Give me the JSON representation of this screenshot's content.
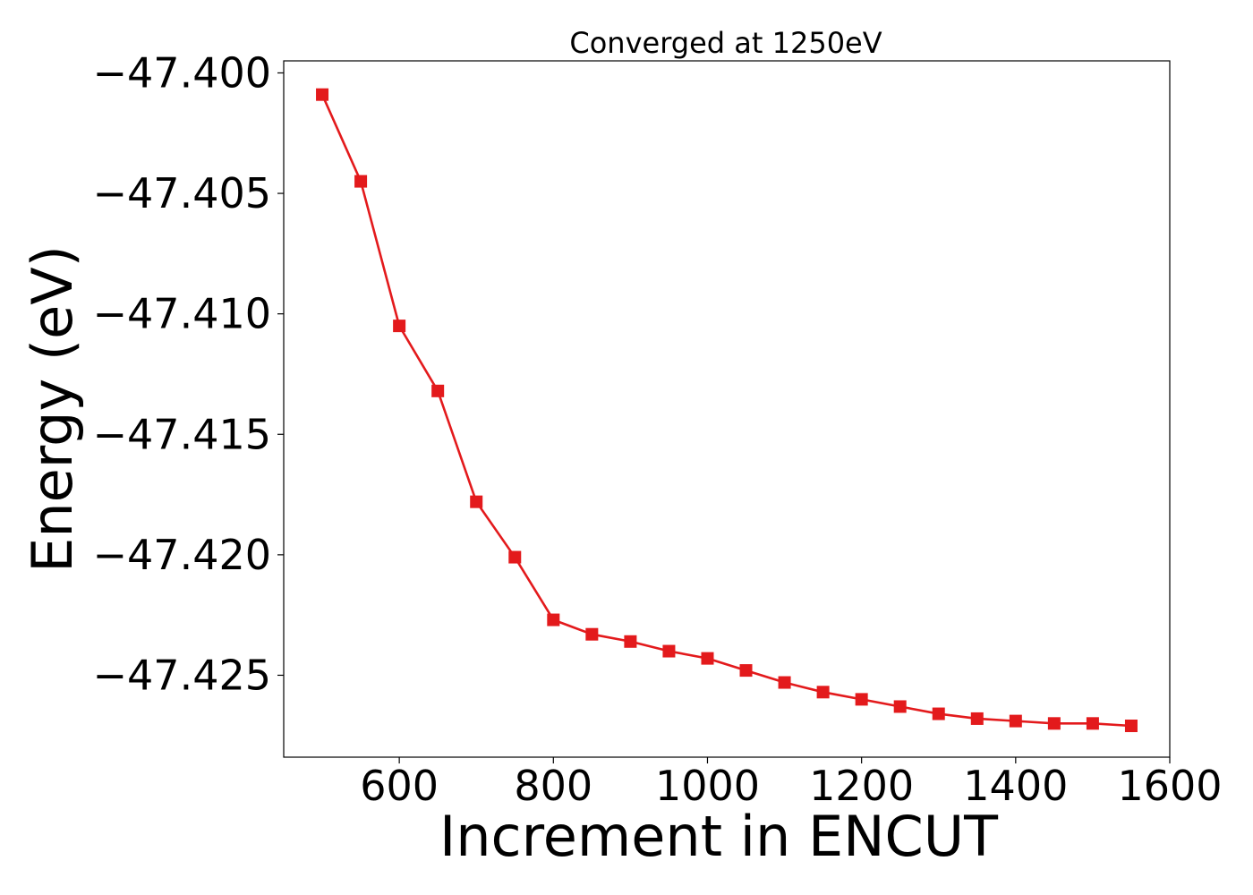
{
  "chart_data": {
    "type": "line",
    "title": "Converged at 1250eV",
    "xlabel": "Increment in ENCUT",
    "ylabel": "Energy (eV)",
    "xlim": [
      450,
      1600
    ],
    "ylim": [
      -47.4284,
      -47.3995
    ],
    "xticks": [
      600,
      800,
      1000,
      1200,
      1400,
      1600
    ],
    "xtick_labels": [
      "600",
      "800",
      "1000",
      "1200",
      "1400",
      "1600"
    ],
    "yticks": [
      -47.4,
      -47.405,
      -47.41,
      -47.415,
      -47.42,
      -47.425
    ],
    "ytick_labels": [
      "−47.400",
      "−47.405",
      "−47.410",
      "−47.415",
      "−47.420",
      "−47.425"
    ],
    "grid": false,
    "legend": "none",
    "series": [
      {
        "color": "#e31a1c",
        "marker": "square",
        "x": [
          500,
          550,
          600,
          650,
          700,
          750,
          800,
          850,
          900,
          950,
          1000,
          1050,
          1100,
          1150,
          1200,
          1250,
          1300,
          1350,
          1400,
          1450,
          1500,
          1550
        ],
        "y": [
          -47.4009,
          -47.4045,
          -47.4105,
          -47.4132,
          -47.4178,
          -47.4201,
          -47.4227,
          -47.4233,
          -47.4236,
          -47.424,
          -47.4243,
          -47.4248,
          -47.4253,
          -47.4257,
          -47.426,
          -47.4263,
          -47.4266,
          -47.4268,
          -47.4269,
          -47.427,
          -47.427,
          -47.4271
        ]
      }
    ]
  }
}
